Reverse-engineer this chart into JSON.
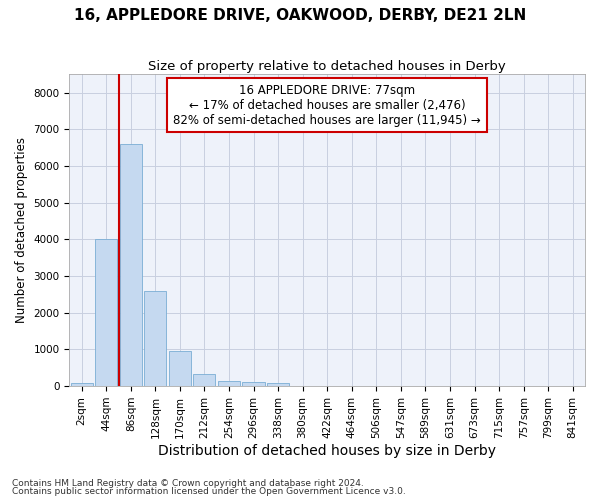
{
  "title1": "16, APPLEDORE DRIVE, OAKWOOD, DERBY, DE21 2LN",
  "title2": "Size of property relative to detached houses in Derby",
  "xlabel": "Distribution of detached houses by size in Derby",
  "ylabel": "Number of detached properties",
  "footnote1": "Contains HM Land Registry data © Crown copyright and database right 2024.",
  "footnote2": "Contains public sector information licensed under the Open Government Licence v3.0.",
  "annotation_line1": "16 APPLEDORE DRIVE: 77sqm",
  "annotation_line2": "← 17% of detached houses are smaller (2,476)",
  "annotation_line3": "82% of semi-detached houses are larger (11,945) →",
  "bar_labels": [
    "2sqm",
    "44sqm",
    "86sqm",
    "128sqm",
    "170sqm",
    "212sqm",
    "254sqm",
    "296sqm",
    "338sqm",
    "380sqm",
    "422sqm",
    "464sqm",
    "506sqm",
    "547sqm",
    "589sqm",
    "631sqm",
    "673sqm",
    "715sqm",
    "757sqm",
    "799sqm",
    "841sqm"
  ],
  "bar_values": [
    75,
    4000,
    6600,
    2600,
    950,
    325,
    150,
    110,
    75,
    0,
    0,
    0,
    0,
    0,
    0,
    0,
    0,
    0,
    0,
    0,
    0
  ],
  "bar_color": "#c5d9f0",
  "bar_edge_color": "#7aadd4",
  "vline_color": "#cc0000",
  "ylim": [
    0,
    8500
  ],
  "yticks": [
    0,
    1000,
    2000,
    3000,
    4000,
    5000,
    6000,
    7000,
    8000
  ],
  "grid_color": "#c8cfe0",
  "bg_color": "#eef2fa",
  "annotation_box_color": "#cc0000",
  "title1_fontsize": 11,
  "title2_fontsize": 9.5,
  "xlabel_fontsize": 10,
  "ylabel_fontsize": 8.5,
  "tick_fontsize": 7.5,
  "annotation_fontsize": 8.5,
  "footnote_fontsize": 6.5
}
